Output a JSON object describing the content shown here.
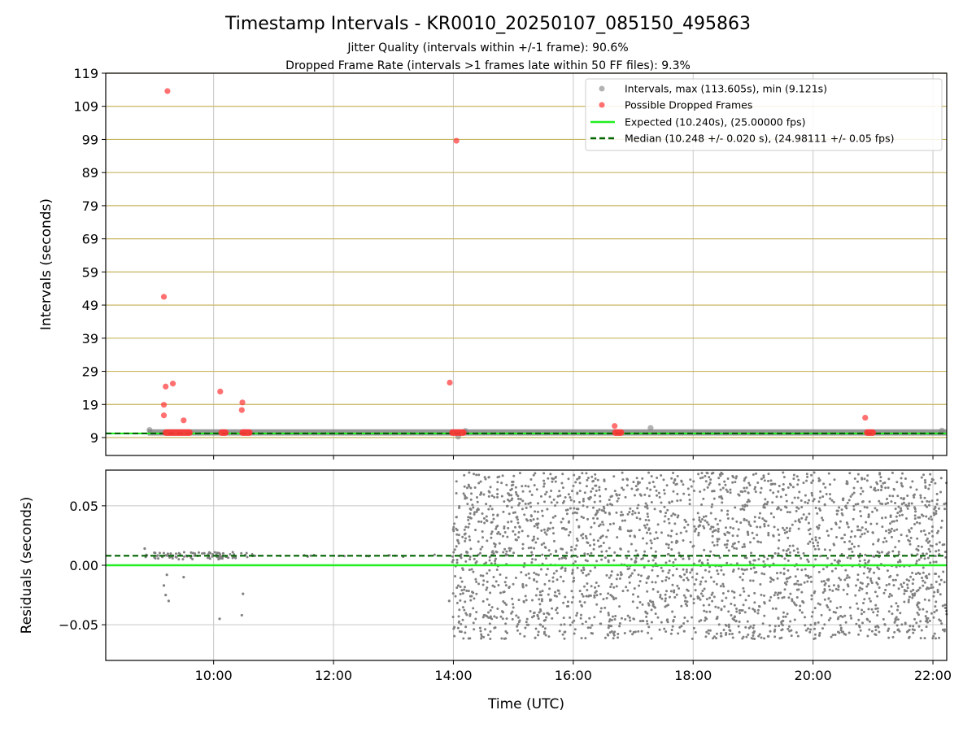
{
  "chart_data": {
    "type": "scatter",
    "title": "Timestamp Intervals - KR0010_20250107_085150_495863",
    "subtitles": [
      "Jitter Quality (intervals within +/-1 frame): 90.6%",
      "Dropped Frame Rate (intervals >1 frames late within 50 FF files): 9.3%"
    ],
    "xlabel": "Time (UTC)",
    "x_ticks": [
      "10:00",
      "12:00",
      "14:00",
      "16:00",
      "18:00",
      "20:00",
      "22:00"
    ],
    "x_tick_hours": [
      10,
      12,
      14,
      16,
      18,
      20,
      22
    ],
    "xlim_hours": [
      8.2,
      22.23
    ],
    "colors": {
      "intervals": "#808080",
      "dropped": "#ff3333",
      "expected": "#22ee22",
      "median": "#006400",
      "hgrid_top": "#c8b560",
      "grid": "#c8c8c8"
    },
    "top_panel": {
      "ylabel": "Intervals (seconds)",
      "ylim": [
        3.6,
        119
      ],
      "y_ticks": [
        9,
        19,
        29,
        39,
        49,
        59,
        69,
        79,
        89,
        99,
        109,
        119
      ],
      "expected_interval": 10.24,
      "median_interval": 10.248,
      "dropped_frames": [
        {
          "t": 9.23,
          "y": 113.6
        },
        {
          "t": 14.05,
          "y": 98.6
        },
        {
          "t": 9.17,
          "y": 51.5
        },
        {
          "t": 13.94,
          "y": 25.6
        },
        {
          "t": 9.32,
          "y": 25.3
        },
        {
          "t": 9.2,
          "y": 24.4
        },
        {
          "t": 10.11,
          "y": 22.9
        },
        {
          "t": 10.48,
          "y": 19.6
        },
        {
          "t": 9.17,
          "y": 18.9
        },
        {
          "t": 10.47,
          "y": 17.3
        },
        {
          "t": 9.17,
          "y": 15.7
        },
        {
          "t": 9.5,
          "y": 14.2
        },
        {
          "t": 16.69,
          "y": 12.5
        },
        {
          "t": 20.87,
          "y": 15.0
        }
      ],
      "dropped_bands": [
        {
          "start": 9.15,
          "end": 9.65,
          "y": 10.5
        },
        {
          "start": 10.08,
          "end": 10.25,
          "y": 10.5
        },
        {
          "start": 10.43,
          "end": 10.65,
          "y": 10.5
        },
        {
          "start": 13.93,
          "end": 14.22,
          "y": 10.5
        },
        {
          "start": 16.65,
          "end": 16.85,
          "y": 10.5
        },
        {
          "start": 20.85,
          "end": 21.05,
          "y": 10.5
        }
      ],
      "interval_outliers": [
        {
          "t": 8.93,
          "y": 11.3
        },
        {
          "t": 14.08,
          "y": 9.3
        },
        {
          "t": 14.2,
          "y": 11.0
        },
        {
          "t": 17.29,
          "y": 11.9
        },
        {
          "t": 22.15,
          "y": 11.1
        }
      ]
    },
    "bottom_panel": {
      "ylabel": "Residuals (seconds)",
      "ylim": [
        -0.08,
        0.08
      ],
      "y_ticks": [
        0.05,
        0.0,
        -0.05
      ],
      "y_tick_labels": [
        "0.05",
        "0.00",
        "−0.05"
      ],
      "expected_residual": 0.0,
      "median_residual": 0.008,
      "early_segment": {
        "t_start": 8.85,
        "t_end": 10.7,
        "center": 0.008,
        "spread": 0.003
      },
      "dense_segment": {
        "t_start": 13.98,
        "t_end": 22.23,
        "center": 0.008,
        "spread": 0.07
      },
      "outliers": [
        {
          "t": 9.25,
          "y": -0.03
        },
        {
          "t": 9.2,
          "y": -0.025
        },
        {
          "t": 9.17,
          "y": -0.017
        },
        {
          "t": 9.22,
          "y": -0.008
        },
        {
          "t": 9.5,
          "y": -0.01
        },
        {
          "t": 10.1,
          "y": -0.045
        },
        {
          "t": 10.47,
          "y": -0.042
        },
        {
          "t": 10.49,
          "y": -0.024
        },
        {
          "t": 13.93,
          "y": -0.03
        },
        {
          "t": 8.85,
          "y": 0.014
        }
      ]
    },
    "legend": {
      "placement": "top-right",
      "entries": [
        {
          "label": "Intervals, max (113.605s), min (9.121s)",
          "marker": "dot-gray"
        },
        {
          "label": "Possible Dropped Frames",
          "marker": "dot-red"
        },
        {
          "label": "Expected (10.240s), (25.00000 fps)",
          "marker": "line-green"
        },
        {
          "label": "Median (10.248 +/- 0.020 s), (24.98111 +/- 0.05 fps)",
          "marker": "line-dashed-darkgreen"
        }
      ]
    }
  }
}
